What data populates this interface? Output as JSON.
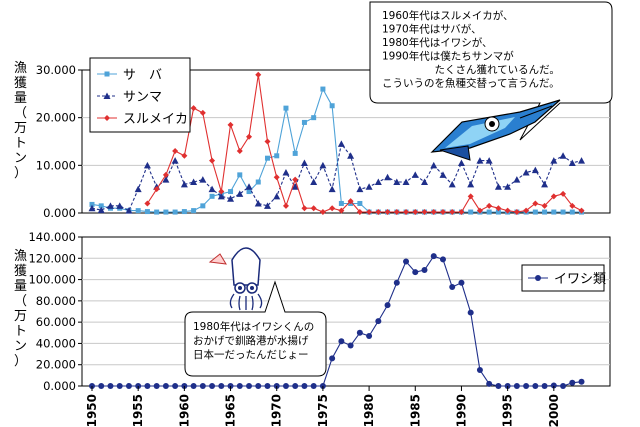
{
  "chart_data": [
    {
      "type": "line",
      "ylabel": "漁獲量（万トン）",
      "ylim": [
        0,
        30000
      ],
      "yticks": [
        "0.000",
        "10.000",
        "20.000",
        "30.000"
      ],
      "x": [
        1950,
        1951,
        1952,
        1953,
        1954,
        1955,
        1956,
        1957,
        1958,
        1959,
        1960,
        1961,
        1962,
        1963,
        1964,
        1965,
        1966,
        1967,
        1968,
        1969,
        1970,
        1971,
        1972,
        1973,
        1974,
        1975,
        1976,
        1977,
        1978,
        1979,
        1980,
        1981,
        1982,
        1983,
        1984,
        1985,
        1986,
        1987,
        1988,
        1989,
        1990,
        1991,
        1992,
        1993,
        1994,
        1995,
        1996,
        1997,
        1998,
        1999,
        2000,
        2001,
        2002,
        2003
      ],
      "legend_position": "top-left",
      "series": [
        {
          "name": "サ　バ",
          "color": "#4fa3d8",
          "marker": "square",
          "dash": "solid",
          "values": [
            1800,
            1500,
            1000,
            1000,
            500,
            500,
            300,
            200,
            200,
            200,
            300,
            500,
            1500,
            3500,
            4000,
            4500,
            8000,
            4500,
            6500,
            11500,
            12000,
            22000,
            12500,
            19000,
            20000,
            26000,
            22500,
            2000,
            2000,
            2000,
            200,
            200,
            200,
            200,
            200,
            200,
            200,
            200,
            200,
            200,
            200,
            200,
            200,
            200,
            200,
            200,
            200,
            200,
            200,
            200,
            200,
            200,
            200,
            200
          ]
        },
        {
          "name": "サンマ",
          "color": "#1f2f8a",
          "marker": "triangle",
          "dash": "dashed",
          "values": [
            1000,
            600,
            1500,
            1500,
            500,
            5000,
            10000,
            5500,
            7000,
            11000,
            6000,
            6500,
            7000,
            5000,
            3500,
            3000,
            4000,
            5500,
            2000,
            1500,
            3500,
            8500,
            5500,
            10500,
            6500,
            10000,
            5000,
            14500,
            12000,
            5000,
            5500,
            6500,
            7500,
            6500,
            6500,
            8000,
            6500,
            10000,
            8000,
            6000,
            10500,
            6000,
            11000,
            11000,
            5500,
            5500,
            7000,
            8500,
            9000,
            6000,
            11000,
            12000,
            10500,
            11000
          ]
        },
        {
          "name": "スルメイカ",
          "color": "#e03030",
          "marker": "diamond",
          "dash": "solid",
          "values": [
            null,
            null,
            null,
            null,
            null,
            null,
            2000,
            5000,
            8000,
            13000,
            12000,
            22000,
            21000,
            11000,
            4500,
            18500,
            13000,
            16000,
            29000,
            15000,
            7500,
            1500,
            7000,
            1000,
            1000,
            200,
            1000,
            500,
            2500,
            200,
            200,
            200,
            200,
            200,
            200,
            200,
            200,
            200,
            200,
            200,
            200,
            3500,
            500,
            1500,
            1000,
            500,
            200,
            500,
            2000,
            1500,
            3500,
            4000,
            1500,
            500
          ]
        }
      ],
      "annotation": "1960年代はスルメイカが、\n1970年代はサバが、\n1980年代はイワシが、\n1990年代は僕たちサンマが\n　　　　　たくさん獲れているんだ。\nこういうのを魚種交替って言うんだ。"
    },
    {
      "type": "line",
      "ylabel": "漁獲量（万トン）",
      "ylim": [
        0,
        140000
      ],
      "yticks": [
        "0.000",
        "20.000",
        "40.000",
        "60.000",
        "80.000",
        "100.000",
        "120.000",
        "140.000"
      ],
      "xticks": [
        1950,
        1955,
        1960,
        1965,
        1970,
        1975,
        1980,
        1985,
        1990,
        1995,
        2000
      ],
      "x": [
        1950,
        1951,
        1952,
        1953,
        1954,
        1955,
        1956,
        1957,
        1958,
        1959,
        1960,
        1961,
        1962,
        1963,
        1964,
        1965,
        1966,
        1967,
        1968,
        1969,
        1970,
        1971,
        1972,
        1973,
        1974,
        1975,
        1976,
        1977,
        1978,
        1979,
        1980,
        1981,
        1982,
        1983,
        1984,
        1985,
        1986,
        1987,
        1988,
        1989,
        1990,
        1991,
        1992,
        1993,
        1994,
        1995,
        1996,
        1997,
        1998,
        1999,
        2000,
        2001,
        2002,
        2003
      ],
      "legend_position": "right",
      "series": [
        {
          "name": "イワシ類",
          "color": "#1f2f8a",
          "marker": "circle",
          "dash": "solid",
          "values": [
            0,
            0,
            0,
            0,
            0,
            0,
            0,
            0,
            0,
            0,
            0,
            0,
            0,
            0,
            0,
            0,
            0,
            0,
            0,
            0,
            0,
            0,
            0,
            0,
            0,
            0,
            26000,
            42000,
            38000,
            50000,
            47000,
            61000,
            76000,
            97000,
            117000,
            107000,
            109000,
            122000,
            119000,
            93000,
            97000,
            69000,
            15000,
            2000,
            0,
            0,
            0,
            0,
            0,
            0,
            500,
            0,
            3000,
            4000
          ]
        }
      ],
      "annotation": "1980年代はイワシくんの\nおかげで釧路港が水揚げ\n日本一だったんだじょー"
    }
  ]
}
